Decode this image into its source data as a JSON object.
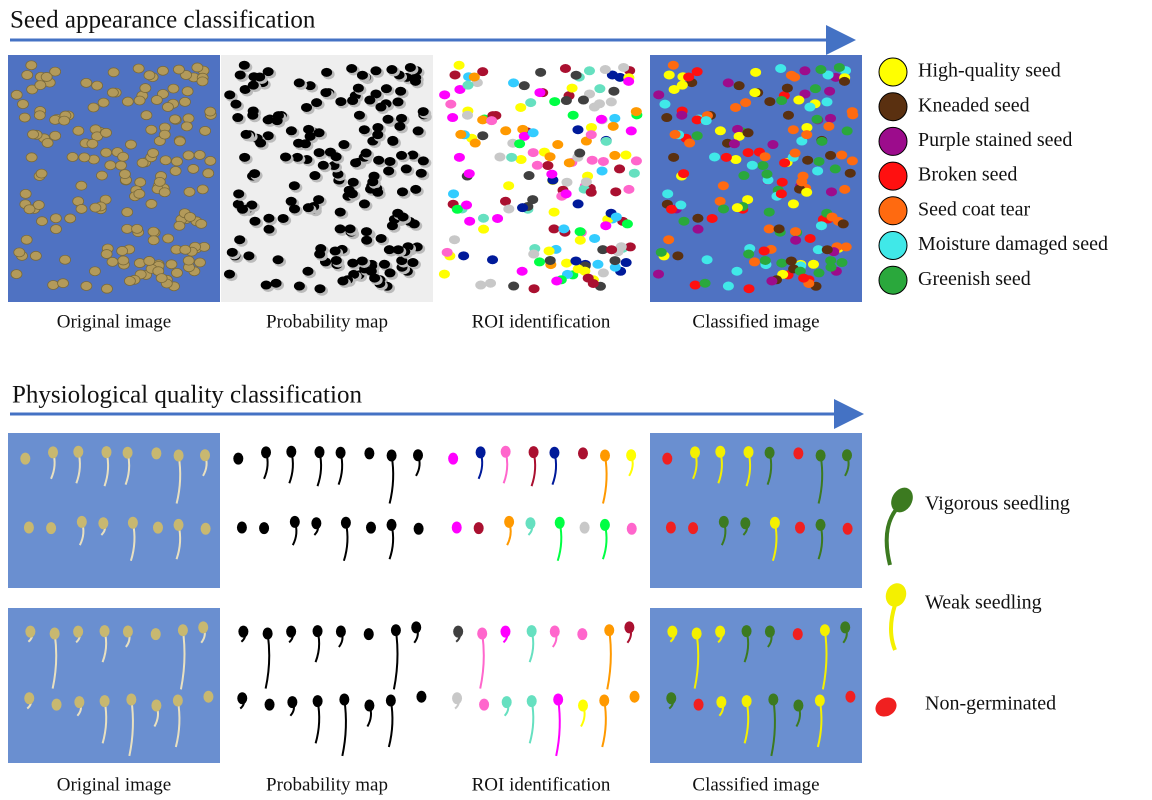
{
  "sections": [
    {
      "title": "Seed appearance classification",
      "panels": [
        "Original image",
        "Probability map",
        "ROI identification",
        "Classified image"
      ],
      "legend": [
        {
          "label": "High-quality seed",
          "color": "#ffff00"
        },
        {
          "label": "Kneaded seed",
          "color": "#5a3010"
        },
        {
          "label": "Purple stained seed",
          "color": "#9c0c8c"
        },
        {
          "label": "Broken seed",
          "color": "#ff1010"
        },
        {
          "label": "Seed coat tear",
          "color": "#ff6a10"
        },
        {
          "label": "Moisture damaged seed",
          "color": "#40e8e8"
        },
        {
          "label": "Greenish seed",
          "color": "#2aa83c"
        }
      ]
    },
    {
      "title": "Physiological quality classification",
      "panels": [
        "Original image",
        "Probability map",
        "ROI identification",
        "Classified image"
      ],
      "legend": [
        {
          "label": "Vigorous seedling",
          "color": "#3c7a20"
        },
        {
          "label": "Weak seedling",
          "color": "#f4f000"
        },
        {
          "label": "Non-germinated",
          "color": "#f02020"
        }
      ]
    }
  ]
}
